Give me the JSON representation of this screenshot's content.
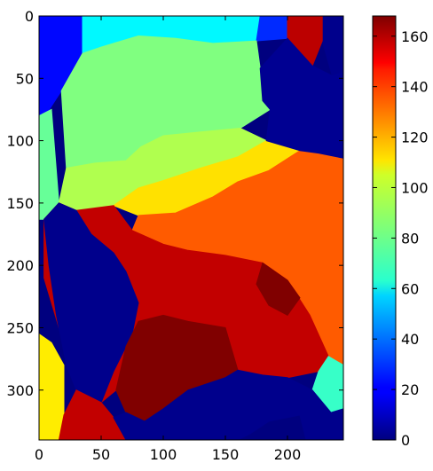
{
  "chart_data": {
    "type": "heatmap",
    "title": "",
    "xlabel": "",
    "ylabel": "",
    "colormap": "jet",
    "image_shape": {
      "rows": 340,
      "cols": 245
    },
    "xlim": [
      0,
      245
    ],
    "ylim": [
      340,
      0
    ],
    "x_ticks": [
      {
        "value": 0,
        "label": "0"
      },
      {
        "value": 50,
        "label": "50"
      },
      {
        "value": 100,
        "label": "100"
      },
      {
        "value": 150,
        "label": "150"
      },
      {
        "value": 200,
        "label": "200"
      }
    ],
    "y_ticks": [
      {
        "value": 0,
        "label": "0"
      },
      {
        "value": 50,
        "label": "50"
      },
      {
        "value": 100,
        "label": "100"
      },
      {
        "value": 150,
        "label": "150"
      },
      {
        "value": 200,
        "label": "200"
      },
      {
        "value": 250,
        "label": "250"
      },
      {
        "value": 300,
        "label": "300"
      }
    ],
    "colorbar": {
      "min": 0,
      "max": 168,
      "ticks": [
        {
          "value": 0,
          "label": "0"
        },
        {
          "value": 20,
          "label": "20"
        },
        {
          "value": 40,
          "label": "40"
        },
        {
          "value": 60,
          "label": "60"
        },
        {
          "value": 80,
          "label": "80"
        },
        {
          "value": 100,
          "label": "100"
        },
        {
          "value": 120,
          "label": "120"
        },
        {
          "value": 140,
          "label": "140"
        },
        {
          "value": 160,
          "label": "160"
        }
      ]
    },
    "regions": [
      {
        "id": "top-left-blue",
        "value": 22,
        "points": [
          [
            0,
            0
          ],
          [
            40,
            0
          ],
          [
            35,
            30
          ],
          [
            18,
            60
          ],
          [
            5,
            80
          ],
          [
            0,
            80
          ]
        ]
      },
      {
        "id": "top-cyan",
        "value": 62,
        "points": [
          [
            35,
            0
          ],
          [
            130,
            0
          ],
          [
            178,
            0
          ],
          [
            175,
            20
          ],
          [
            140,
            22
          ],
          [
            110,
            18
          ],
          [
            80,
            16
          ],
          [
            50,
            25
          ],
          [
            35,
            30
          ]
        ]
      },
      {
        "id": "top-blue-small",
        "value": 28,
        "points": [
          [
            178,
            0
          ],
          [
            210,
            0
          ],
          [
            200,
            18
          ],
          [
            175,
            20
          ]
        ]
      },
      {
        "id": "right-edge-navy",
        "value": 2,
        "points": [
          [
            228,
            0
          ],
          [
            245,
            0
          ],
          [
            245,
            45
          ],
          [
            236,
            48
          ],
          [
            228,
            20
          ]
        ]
      },
      {
        "id": "left-strip-green",
        "value": 80,
        "points": [
          [
            0,
            80
          ],
          [
            10,
            75
          ],
          [
            16,
            150
          ],
          [
            4,
            163
          ],
          [
            0,
            163
          ]
        ]
      },
      {
        "id": "upper-green",
        "value": 84,
        "points": [
          [
            35,
            30
          ],
          [
            50,
            25
          ],
          [
            80,
            16
          ],
          [
            110,
            18
          ],
          [
            140,
            22
          ],
          [
            175,
            20
          ],
          [
            178,
            42
          ],
          [
            180,
            68
          ],
          [
            186,
            75
          ],
          [
            162,
            90
          ],
          [
            130,
            93
          ],
          [
            100,
            96
          ],
          [
            82,
            105
          ],
          [
            70,
            116
          ],
          [
            45,
            118
          ],
          [
            22,
            122
          ],
          [
            18,
            60
          ]
        ]
      },
      {
        "id": "upper-mid-green",
        "value": 92,
        "points": [
          [
            22,
            122
          ],
          [
            45,
            118
          ],
          [
            70,
            116
          ],
          [
            82,
            105
          ],
          [
            100,
            96
          ],
          [
            130,
            93
          ],
          [
            162,
            90
          ],
          [
            183,
            100
          ],
          [
            160,
            113
          ],
          [
            130,
            122
          ],
          [
            100,
            132
          ],
          [
            80,
            138
          ],
          [
            60,
            152
          ],
          [
            30,
            156
          ],
          [
            16,
            150
          ]
        ]
      },
      {
        "id": "yellow",
        "value": 110,
        "points": [
          [
            80,
            138
          ],
          [
            100,
            132
          ],
          [
            130,
            122
          ],
          [
            160,
            113
          ],
          [
            183,
            100
          ],
          [
            210,
            108
          ],
          [
            185,
            124
          ],
          [
            160,
            133
          ],
          [
            140,
            145
          ],
          [
            110,
            158
          ],
          [
            80,
            160
          ],
          [
            60,
            152
          ]
        ]
      },
      {
        "id": "orange",
        "value": 132,
        "points": [
          [
            110,
            158
          ],
          [
            140,
            145
          ],
          [
            160,
            133
          ],
          [
            185,
            124
          ],
          [
            210,
            108
          ],
          [
            225,
            110
          ],
          [
            245,
            114
          ],
          [
            245,
            280
          ],
          [
            233,
            273
          ],
          [
            218,
            240
          ],
          [
            200,
            212
          ],
          [
            180,
            198
          ],
          [
            150,
            192
          ],
          [
            120,
            188
          ],
          [
            100,
            183
          ],
          [
            75,
            172
          ],
          [
            80,
            160
          ]
        ]
      },
      {
        "id": "top-right-red",
        "value": 158,
        "points": [
          [
            200,
            0
          ],
          [
            228,
            0
          ],
          [
            228,
            20
          ],
          [
            220,
            40
          ],
          [
            208,
            35
          ],
          [
            200,
            18
          ]
        ]
      },
      {
        "id": "dark-blue-upper-right",
        "value": 3,
        "points": [
          [
            178,
            42
          ],
          [
            200,
            18
          ],
          [
            220,
            40
          ],
          [
            236,
            48
          ],
          [
            245,
            45
          ],
          [
            245,
            114
          ],
          [
            225,
            110
          ],
          [
            210,
            108
          ],
          [
            183,
            100
          ],
          [
            186,
            75
          ],
          [
            180,
            68
          ]
        ]
      },
      {
        "id": "red-left-blob",
        "value": 157,
        "points": [
          [
            30,
            156
          ],
          [
            60,
            152
          ],
          [
            75,
            172
          ],
          [
            100,
            183
          ],
          [
            120,
            188
          ],
          [
            150,
            192
          ],
          [
            180,
            198
          ],
          [
            200,
            212
          ],
          [
            218,
            240
          ],
          [
            233,
            273
          ],
          [
            225,
            285
          ],
          [
            200,
            290
          ],
          [
            180,
            288
          ],
          [
            160,
            284
          ],
          [
            150,
            250
          ],
          [
            120,
            245
          ],
          [
            100,
            240
          ],
          [
            80,
            245
          ],
          [
            70,
            265
          ],
          [
            62,
            300
          ],
          [
            50,
            310
          ],
          [
            42,
            300
          ],
          [
            30,
            270
          ],
          [
            16,
            250
          ],
          [
            4,
            210
          ],
          [
            4,
            163
          ],
          [
            16,
            150
          ]
        ]
      },
      {
        "id": "left-navy",
        "value": 2,
        "points": [
          [
            4,
            163
          ],
          [
            16,
            150
          ],
          [
            30,
            156
          ],
          [
            42,
            175
          ],
          [
            60,
            190
          ],
          [
            70,
            205
          ],
          [
            80,
            230
          ],
          [
            75,
            255
          ],
          [
            70,
            265
          ],
          [
            60,
            285
          ],
          [
            50,
            310
          ],
          [
            30,
            300
          ],
          [
            22,
            280
          ],
          [
            14,
            240
          ],
          [
            8,
            200
          ]
        ]
      },
      {
        "id": "dark-red-center",
        "value": 168,
        "points": [
          [
            80,
            245
          ],
          [
            100,
            240
          ],
          [
            120,
            245
          ],
          [
            150,
            250
          ],
          [
            160,
            284
          ],
          [
            150,
            290
          ],
          [
            120,
            300
          ],
          [
            100,
            315
          ],
          [
            85,
            325
          ],
          [
            70,
            318
          ],
          [
            62,
            300
          ],
          [
            70,
            265
          ]
        ]
      },
      {
        "id": "dark-red-right",
        "value": 168,
        "points": [
          [
            180,
            198
          ],
          [
            200,
            212
          ],
          [
            210,
            226
          ],
          [
            200,
            240
          ],
          [
            185,
            232
          ],
          [
            175,
            215
          ]
        ]
      },
      {
        "id": "yellow-bottom-left",
        "value": 108,
        "points": [
          [
            0,
            255
          ],
          [
            10,
            262
          ],
          [
            20,
            280
          ],
          [
            20,
            320
          ],
          [
            16,
            340
          ],
          [
            0,
            340
          ]
        ]
      },
      {
        "id": "bottom-red",
        "value": 157,
        "points": [
          [
            20,
            320
          ],
          [
            30,
            300
          ],
          [
            50,
            310
          ],
          [
            60,
            322
          ],
          [
            70,
            340
          ],
          [
            16,
            340
          ]
        ]
      },
      {
        "id": "bottom-navy",
        "value": 2,
        "points": [
          [
            60,
            322
          ],
          [
            70,
            318
          ],
          [
            85,
            325
          ],
          [
            100,
            315
          ],
          [
            120,
            300
          ],
          [
            150,
            290
          ],
          [
            160,
            284
          ],
          [
            180,
            288
          ],
          [
            200,
            290
          ],
          [
            220,
            300
          ],
          [
            210,
            320
          ],
          [
            185,
            325
          ],
          [
            170,
            335
          ],
          [
            160,
            340
          ],
          [
            70,
            340
          ]
        ]
      },
      {
        "id": "bottom-right-cyan",
        "value": 72,
        "points": [
          [
            225,
            285
          ],
          [
            233,
            273
          ],
          [
            245,
            280
          ],
          [
            245,
            315
          ],
          [
            235,
            318
          ],
          [
            220,
            300
          ]
        ]
      },
      {
        "id": "bottom-right-navy",
        "value": 2,
        "points": [
          [
            210,
            320
          ],
          [
            220,
            300
          ],
          [
            235,
            318
          ],
          [
            245,
            315
          ],
          [
            245,
            340
          ],
          [
            215,
            340
          ]
        ]
      }
    ]
  }
}
